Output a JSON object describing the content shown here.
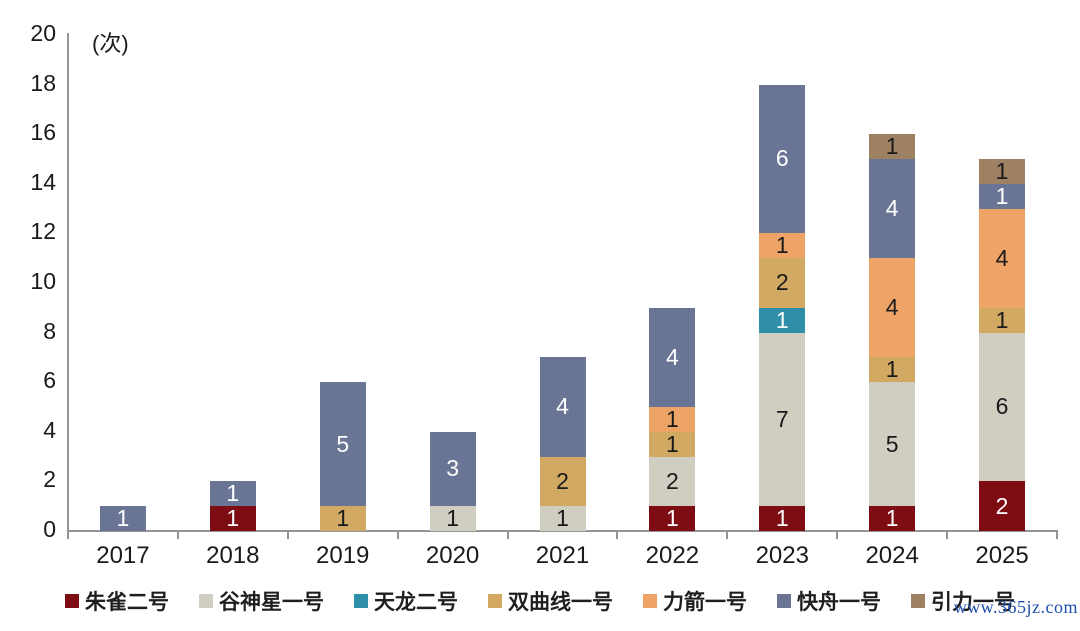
{
  "chart": {
    "unit_label": "(次)",
    "watermark": "www.365jz.com",
    "axis_color": "#949494",
    "text_color": "#1a1a1a",
    "background": "#ffffff"
  },
  "chart_data": {
    "type": "bar",
    "stacked": true,
    "title": "",
    "xlabel": "",
    "ylabel": "(次)",
    "ylim": [
      0,
      20
    ],
    "ytick_step": 2,
    "ytick_labels": [
      "0",
      "2",
      "4",
      "6",
      "8",
      "10",
      "12",
      "14",
      "16",
      "18",
      "20"
    ],
    "grid": false,
    "legend_position": "bottom",
    "categories": [
      "2017",
      "2018",
      "2019",
      "2020",
      "2021",
      "2022",
      "2023",
      "2024",
      "2025"
    ],
    "series": [
      {
        "name": "朱雀二号",
        "color": "#7d0d12",
        "label_color": "#ffffff",
        "values": [
          0,
          1,
          0,
          0,
          0,
          1,
          1,
          1,
          2
        ]
      },
      {
        "name": "谷神星一号",
        "color": "#cfcec1",
        "label_color": "#1a1a1a",
        "values": [
          0,
          0,
          0,
          1,
          1,
          2,
          7,
          5,
          6
        ]
      },
      {
        "name": "天龙二号",
        "color": "#2f8fa8",
        "label_color": "#ffffff",
        "values": [
          0,
          0,
          0,
          0,
          0,
          0,
          1,
          0,
          0
        ]
      },
      {
        "name": "双曲线一号",
        "color": "#d2a963",
        "label_color": "#1a1a1a",
        "values": [
          0,
          0,
          1,
          0,
          2,
          1,
          2,
          1,
          1
        ]
      },
      {
        "name": "力箭一号",
        "color": "#eda466",
        "label_color": "#1a1a1a",
        "values": [
          0,
          0,
          0,
          0,
          0,
          1,
          1,
          4,
          4
        ]
      },
      {
        "name": "快舟一号",
        "color": "#6a7596",
        "label_color": "#ffffff",
        "values": [
          1,
          1,
          5,
          3,
          4,
          4,
          6,
          4,
          1
        ]
      },
      {
        "name": "引力一号",
        "color": "#9e8163",
        "label_color": "#1a1a1a",
        "values": [
          0,
          0,
          0,
          0,
          0,
          0,
          0,
          1,
          1
        ]
      }
    ],
    "totals": [
      1,
      2,
      6,
      4,
      7,
      9,
      18,
      16,
      15
    ]
  }
}
